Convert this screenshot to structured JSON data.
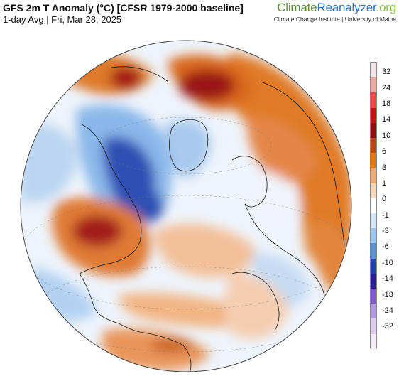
{
  "header": {
    "title": "GFS 2m T Anomaly (°C) [CFSR 1979-2000 baseline]",
    "subtitle": "1-day Avg | Fri, Mar 28, 2025"
  },
  "brand": {
    "part1": "Climate",
    "part2": "Reanalyzer",
    "part3": ".org",
    "institution": "Climate Change Institute | University of Maine"
  },
  "legend": {
    "labels": [
      "32",
      "24",
      "18",
      "14",
      "10",
      "6",
      "3",
      "1",
      "0",
      "-1",
      "-3",
      "-6",
      "-10",
      "-14",
      "-18",
      "-24",
      "-32"
    ],
    "colors": [
      "#f3e6e6",
      "#f2a6a6",
      "#e84848",
      "#c01818",
      "#8a1010",
      "#b84a10",
      "#e07a18",
      "#f2ab70",
      "#f7d8c0",
      "#ffffff",
      "#d6e6f6",
      "#9cc6ee",
      "#5a92d8",
      "#2444a8",
      "#2a1e8a",
      "#7e58c6",
      "#b49ae0",
      "#ddd0ef",
      "#f2eaf7"
    ]
  },
  "map": {
    "projection": "orthographic",
    "center": "North Atlantic",
    "colors": {
      "ocean_neutral": "#eef4fb",
      "warm_light": "#f6c9a4",
      "warm": "#e8883a",
      "warm_strong": "#c9601a",
      "hot": "#a41818",
      "cool_light": "#c9ddf2",
      "cool": "#8ab8ea",
      "cold": "#2d4fb4",
      "coast": "#1a1a1a"
    }
  }
}
